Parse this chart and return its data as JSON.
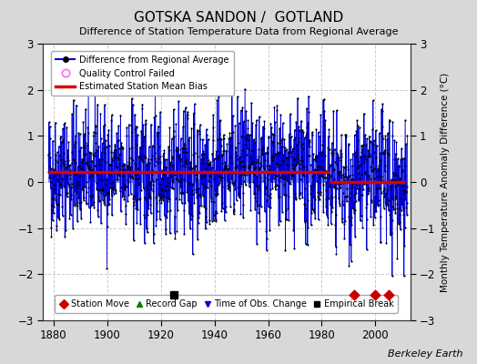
{
  "title": "GOTSKA SANDON /  GOTLAND",
  "subtitle": "Difference of Station Temperature Data from Regional Average",
  "ylabel": "Monthly Temperature Anomaly Difference (°C)",
  "credit": "Berkeley Earth",
  "ylim": [
    -3,
    3
  ],
  "xlim": [
    1876,
    2013
  ],
  "yticks": [
    -3,
    -2,
    -1,
    0,
    1,
    2,
    3
  ],
  "xticks": [
    1880,
    1900,
    1920,
    1940,
    1960,
    1980,
    2000
  ],
  "start_year": 1878,
  "end_year": 2011,
  "seed": 42,
  "bias_segment1_y": 0.22,
  "bias_segment1_end": 1983,
  "bias_segment2_y": 0.0,
  "bias_segment2_start": 1983,
  "line_color": "#0000dd",
  "stem_color": "#6688ff",
  "dot_color": "#000000",
  "bias_color": "#dd0000",
  "bg_color": "#d8d8d8",
  "plot_bg_color": "#ffffff",
  "grid_color": "#cccccc",
  "station_move_years": [
    1992,
    2000,
    2005
  ],
  "station_move_y": -2.45,
  "station_move_color": "#cc0000",
  "empirical_break_years": [
    1925
  ],
  "empirical_break_y": -2.45,
  "empirical_break_color": "#000000",
  "fig_width": 5.24,
  "fig_height": 4.0,
  "dpi": 100
}
